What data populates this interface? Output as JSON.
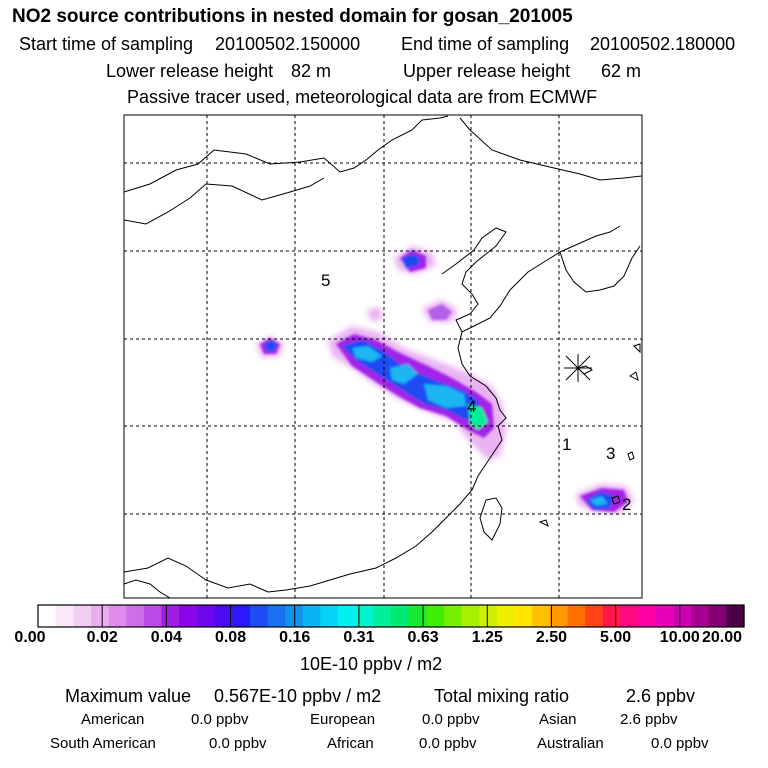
{
  "header": {
    "title": "NO2 source contributions in nested domain for gosan_201005",
    "start_label": "Start time of sampling",
    "start_value": "20100502.150000",
    "end_label": "End time of sampling",
    "end_value": "20100502.180000",
    "lower_label": "Lower release height",
    "lower_value": "82 m",
    "upper_label": "Upper release height",
    "upper_value": "62 m",
    "note": "Passive tracer used, meteorological data are from ECMWF"
  },
  "map": {
    "markers": [
      {
        "label": "1"
      },
      {
        "label": "2"
      },
      {
        "label": "3"
      },
      {
        "label": "4"
      },
      {
        "label": "5"
      }
    ],
    "receptor_symbol": "asterisk-icon"
  },
  "colorbar": {
    "tick_labels": [
      "0.00",
      "0.02",
      "0.04",
      "0.08",
      "0.16",
      "0.31",
      "0.63",
      "1.25",
      "2.50",
      "5.00",
      "10.00",
      "20.00"
    ],
    "colors": [
      "#ffffff",
      "#fbe8fb",
      "#f4cdf5",
      "#ecadf0",
      "#e08cec",
      "#cd6fe8",
      "#bb4be6",
      "#a11de6",
      "#8a06e8",
      "#6d06ee",
      "#4a0af5",
      "#2c18f8",
      "#1d4cf5",
      "#1a70f0",
      "#1292ee",
      "#0ab4f2",
      "#06d2f5",
      "#03f0f0",
      "#00f5cc",
      "#00ee99",
      "#00e870",
      "#18e830",
      "#3fec05",
      "#76ee00",
      "#a6f000",
      "#ccf000",
      "#eef000",
      "#ffe400",
      "#ffc000",
      "#ff9a00",
      "#ff7000",
      "#ff4418",
      "#ff1848",
      "#ff0a80",
      "#ff00a8",
      "#e800b8",
      "#cc00b4",
      "#a80090",
      "#820070",
      "#4a0045"
    ],
    "units": "10E-10 ppbv / m2"
  },
  "summary": {
    "max_label": "Maximum value",
    "max_value": "0.567E-10 ppbv / m2",
    "total_label": "Total mixing ratio",
    "total_value": "2.6 ppbv",
    "regions": [
      {
        "name": "American",
        "value": "0.0 ppbv"
      },
      {
        "name": "European",
        "value": "0.0 ppbv"
      },
      {
        "name": "Asian",
        "value": "2.6 ppbv"
      },
      {
        "name": "South American",
        "value": "0.0 ppbv"
      },
      {
        "name": "African",
        "value": "0.0 ppbv"
      },
      {
        "name": "Australian",
        "value": "0.0 ppbv"
      }
    ]
  },
  "colors": {
    "grid": "#000000",
    "coast": "#000000",
    "plume_light": "#e9a7f3",
    "plume_mid": "#a21fe8",
    "plume_blue": "#1b52f3",
    "plume_cyan": "#1cb6f2",
    "plume_green": "#00ee99"
  }
}
